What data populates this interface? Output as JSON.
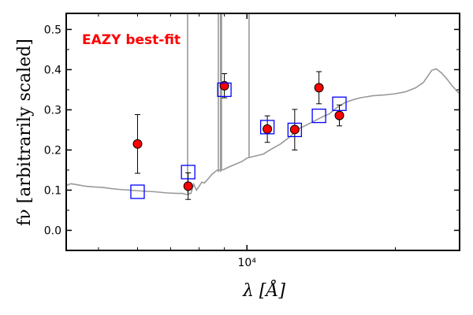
{
  "chart_data": {
    "type": "scatter",
    "title": "",
    "xlabel": "λ [Å]",
    "ylabel": "fν [arbitrarily scaled]",
    "xscale": "log",
    "xlim": [
      4300,
      27000
    ],
    "ylim": [
      -0.05,
      0.54
    ],
    "yticks": [
      0.0,
      0.1,
      0.2,
      0.3,
      0.4,
      0.5
    ],
    "ytick_labels": [
      "0.0",
      "0.1",
      "0.2",
      "0.3",
      "0.4",
      "0.5"
    ],
    "xticks": [
      10000
    ],
    "xtick_labels": [
      "10⁴"
    ],
    "grid": false,
    "annotation": {
      "text": "EAZY best-fit",
      "color": "#ff0000"
    },
    "colors": {
      "observed": "#ff0000",
      "model_box": "#0000ff",
      "template": "#999999"
    },
    "observed": [
      {
        "x": 6000,
        "y": 0.215,
        "yerr_low": 0.073,
        "yerr_high": 0.073
      },
      {
        "x": 7600,
        "y": 0.11,
        "yerr_low": 0.033,
        "yerr_high": 0.033
      },
      {
        "x": 9000,
        "y": 0.36,
        "yerr_low": 0.03,
        "yerr_high": 0.03
      },
      {
        "x": 11000,
        "y": 0.252,
        "yerr_low": 0.033,
        "yerr_high": 0.033
      },
      {
        "x": 12500,
        "y": 0.251,
        "yerr_low": 0.051,
        "yerr_high": 0.05
      },
      {
        "x": 14000,
        "y": 0.355,
        "yerr_low": 0.04,
        "yerr_high": 0.04
      },
      {
        "x": 15400,
        "y": 0.286,
        "yerr_low": 0.026,
        "yerr_high": 0.026
      }
    ],
    "model": [
      {
        "x": 6000,
        "y": 0.096
      },
      {
        "x": 7600,
        "y": 0.145
      },
      {
        "x": 9000,
        "y": 0.35
      },
      {
        "x": 11000,
        "y": 0.257
      },
      {
        "x": 12500,
        "y": 0.25
      },
      {
        "x": 14000,
        "y": 0.285
      },
      {
        "x": 15400,
        "y": 0.315
      }
    ],
    "template": [
      [
        4300,
        0.112
      ],
      [
        4400,
        0.116
      ],
      [
        4500,
        0.114
      ],
      [
        4700,
        0.11
      ],
      [
        4900,
        0.108
      ],
      [
        5100,
        0.107
      ],
      [
        5300,
        0.104
      ],
      [
        5500,
        0.102
      ],
      [
        5800,
        0.1
      ],
      [
        6100,
        0.098
      ],
      [
        6500,
        0.096
      ],
      [
        6900,
        0.093
      ],
      [
        7200,
        0.092
      ],
      [
        7400,
        0.092
      ],
      [
        7500,
        0.09
      ],
      [
        7600,
        0.089
      ],
      [
        7650,
        0.092
      ],
      [
        7700,
        0.092
      ],
      [
        7800,
        0.115
      ],
      [
        7900,
        0.1
      ],
      [
        8000,
        0.11
      ],
      [
        8100,
        0.12
      ],
      [
        8200,
        0.118
      ],
      [
        8300,
        0.125
      ],
      [
        8500,
        0.14
      ],
      [
        8700,
        0.15
      ],
      [
        8900,
        0.15
      ],
      [
        9000,
        0.152
      ],
      [
        9200,
        0.158
      ],
      [
        9500,
        0.165
      ],
      [
        9800,
        0.172
      ],
      [
        10000,
        0.18
      ],
      [
        10400,
        0.185
      ],
      [
        10800,
        0.19
      ],
      [
        11200,
        0.202
      ],
      [
        11700,
        0.215
      ],
      [
        12200,
        0.232
      ],
      [
        12700,
        0.252
      ],
      [
        13200,
        0.262
      ],
      [
        13700,
        0.272
      ],
      [
        14200,
        0.282
      ],
      [
        14700,
        0.29
      ],
      [
        15200,
        0.305
      ],
      [
        15800,
        0.318
      ],
      [
        16400,
        0.325
      ],
      [
        17000,
        0.33
      ],
      [
        18000,
        0.335
      ],
      [
        19000,
        0.337
      ],
      [
        20000,
        0.34
      ],
      [
        21000,
        0.345
      ],
      [
        22000,
        0.355
      ],
      [
        22800,
        0.368
      ],
      [
        23300,
        0.385
      ],
      [
        23700,
        0.398
      ],
      [
        24200,
        0.402
      ],
      [
        24800,
        0.392
      ],
      [
        25400,
        0.378
      ],
      [
        26000,
        0.362
      ],
      [
        26600,
        0.348
      ],
      [
        27000,
        0.34
      ]
    ],
    "emission_lines": [
      {
        "x": 7580,
        "top": 0.54,
        "base": 0.093
      },
      {
        "x": 8750,
        "top": 0.54,
        "base": 0.145
      },
      {
        "x": 8840,
        "top": 0.54,
        "base": 0.145
      },
      {
        "x": 8880,
        "top": 0.54,
        "base": 0.15
      },
      {
        "x": 10100,
        "top": 0.54,
        "base": 0.18
      }
    ]
  }
}
